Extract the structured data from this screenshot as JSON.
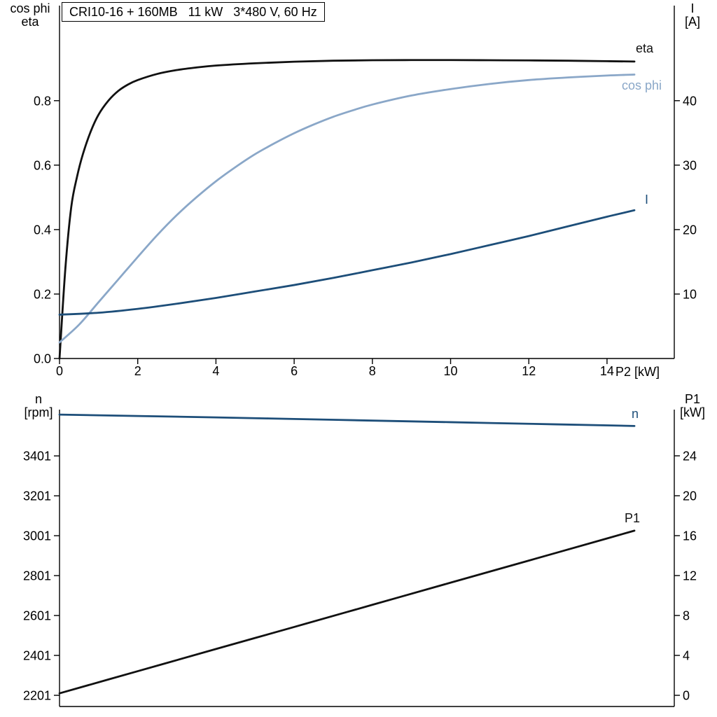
{
  "header": {
    "title": "CRI10-16 + 160MB   11 kW   3*480 V, 60 Hz"
  },
  "colors": {
    "eta_p1_curve": "#111111",
    "cos_phi_curve": "#8aa7c8",
    "i_n_curve": "#1d4e79",
    "axis": "#000000",
    "background": "#ffffff"
  },
  "axis_labels": {
    "top_left_line1": "cos phi",
    "top_left_line2": "eta",
    "top_right_line1": "I",
    "top_right_line2": "[A]",
    "x_label": "P2 [kW]",
    "bottom_left_line1": "n",
    "bottom_left_line2": "[rpm]",
    "bottom_right_line1": "P1",
    "bottom_right_line2": "[kW]"
  },
  "curve_labels": {
    "eta": "eta",
    "cos_phi": "cos phi",
    "current": "I",
    "speed": "n",
    "power": "P1"
  },
  "chart_data": [
    {
      "type": "line",
      "name": "motor-eta-cosphi-current",
      "title": "CRI10-16 + 160MB   11 kW   3*480 V, 60 Hz",
      "xlabel": "P2 [kW]",
      "grid": false,
      "legend": "inline-curve-labels",
      "xlim": [
        0,
        15.72
      ],
      "x_ticks": [
        0,
        2,
        4,
        6,
        8,
        10,
        12,
        14
      ],
      "x_tick_labels": [
        "0",
        "2",
        "4",
        "6",
        "8",
        "10",
        "12",
        "14"
      ],
      "left_axis": {
        "label": "cos phi / eta",
        "tick_values": [
          0.0,
          0.2,
          0.4,
          0.6,
          0.8
        ],
        "ticks": [
          "0.0",
          "0.2",
          "0.4",
          "0.6",
          "0.8"
        ],
        "lim": [
          0,
          1.095
        ]
      },
      "right_axis": {
        "label": "I [A]",
        "tick_values": [
          10,
          20,
          30,
          40
        ],
        "ticks": [
          "10",
          "20",
          "30",
          "40"
        ],
        "lim": [
          0,
          54.75
        ]
      },
      "series": [
        {
          "name": "eta",
          "label": "eta",
          "axis": "left",
          "color": "#111111",
          "points": [
            [
              0,
              0
            ],
            [
              0.15,
              0.28
            ],
            [
              0.3,
              0.47
            ],
            [
              0.45,
              0.565
            ],
            [
              0.6,
              0.635
            ],
            [
              0.8,
              0.705
            ],
            [
              1,
              0.757
            ],
            [
              1.25,
              0.8
            ],
            [
              1.5,
              0.83
            ],
            [
              1.75,
              0.85
            ],
            [
              2,
              0.864
            ],
            [
              2.5,
              0.883
            ],
            [
              3,
              0.895
            ],
            [
              3.5,
              0.903
            ],
            [
              4,
              0.909
            ],
            [
              5,
              0.916
            ],
            [
              6,
              0.921
            ],
            [
              7,
              0.924
            ],
            [
              8,
              0.9255
            ],
            [
              9,
              0.926
            ],
            [
              10,
              0.926
            ],
            [
              11,
              0.9255
            ],
            [
              12,
              0.925
            ],
            [
              13,
              0.924
            ],
            [
              14,
              0.9225
            ],
            [
              14.7,
              0.9215
            ]
          ]
        },
        {
          "name": "cos-phi",
          "label": "cos phi",
          "axis": "left",
          "color": "#8aa7c8",
          "points": [
            [
              0,
              0.05
            ],
            [
              0.5,
              0.105
            ],
            [
              1,
              0.175
            ],
            [
              1.5,
              0.245
            ],
            [
              2,
              0.315
            ],
            [
              2.5,
              0.383
            ],
            [
              3,
              0.445
            ],
            [
              3.5,
              0.5
            ],
            [
              4,
              0.55
            ],
            [
              4.5,
              0.594
            ],
            [
              5,
              0.634
            ],
            [
              5.5,
              0.668
            ],
            [
              6,
              0.699
            ],
            [
              6.5,
              0.726
            ],
            [
              7,
              0.75
            ],
            [
              7.5,
              0.77
            ],
            [
              8,
              0.788
            ],
            [
              9,
              0.816
            ],
            [
              10,
              0.836
            ],
            [
              11,
              0.852
            ],
            [
              12,
              0.864
            ],
            [
              13,
              0.872
            ],
            [
              14,
              0.878
            ],
            [
              14.7,
              0.881
            ]
          ]
        },
        {
          "name": "current",
          "label": "I",
          "axis": "right",
          "color": "#1d4e79",
          "points": [
            [
              0,
              6.8
            ],
            [
              1,
              7.1
            ],
            [
              2,
              7.7
            ],
            [
              3,
              8.5
            ],
            [
              4,
              9.4
            ],
            [
              5,
              10.4
            ],
            [
              6,
              11.4
            ],
            [
              7,
              12.5
            ],
            [
              8,
              13.7
            ],
            [
              9,
              14.9
            ],
            [
              10,
              16.2
            ],
            [
              11,
              17.6
            ],
            [
              12,
              19.0
            ],
            [
              13,
              20.5
            ],
            [
              14,
              22.0
            ],
            [
              14.7,
              23.0
            ]
          ]
        }
      ]
    },
    {
      "type": "line",
      "name": "speed-and-input-power",
      "title": "",
      "xlabel": "",
      "grid": false,
      "legend": "inline-curve-labels",
      "xlim": [
        0,
        15.72
      ],
      "x_ticks": [],
      "x_tick_labels": [],
      "left_axis": {
        "label": "n [rpm]",
        "tick_values": [
          2201,
          2401,
          2601,
          2801,
          3001,
          3201,
          3401
        ],
        "ticks": [
          "2201",
          "2401",
          "2601",
          "2801",
          "3001",
          "3201",
          "3401"
        ],
        "lim": [
          2145,
          3633
        ]
      },
      "right_axis": {
        "label": "P1 [kW]",
        "tick_values": [
          0,
          4,
          8,
          12,
          16,
          20,
          24
        ],
        "ticks": [
          "0",
          "4",
          "8",
          "12",
          "16",
          "20",
          "24"
        ],
        "lim": [
          -1.12,
          28.63
        ]
      },
      "series": [
        {
          "name": "speed",
          "label": "n",
          "axis": "left",
          "color": "#1d4e79",
          "points": [
            [
              0,
              3608
            ],
            [
              2,
              3601
            ],
            [
              4,
              3594
            ],
            [
              6,
              3586
            ],
            [
              8,
              3578
            ],
            [
              10,
              3570
            ],
            [
              12,
              3562
            ],
            [
              14,
              3554
            ],
            [
              14.7,
              3551
            ]
          ]
        },
        {
          "name": "power-input",
          "label": "P1",
          "axis": "right",
          "color": "#111111",
          "points": [
            [
              0,
              0.2
            ],
            [
              2,
              2.42
            ],
            [
              4,
              4.64
            ],
            [
              6,
              6.85
            ],
            [
              8,
              9.07
            ],
            [
              10,
              11.29
            ],
            [
              12,
              13.5
            ],
            [
              14,
              15.72
            ],
            [
              14.7,
              16.5
            ]
          ]
        }
      ]
    }
  ]
}
